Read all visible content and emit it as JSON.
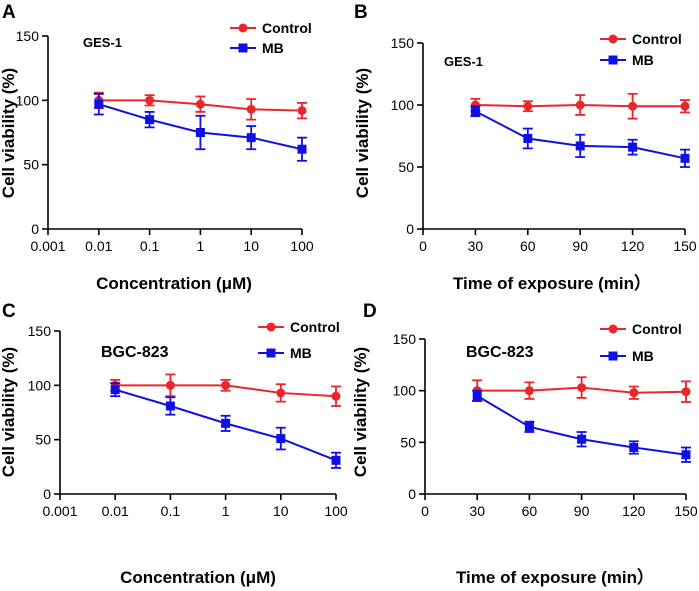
{
  "colors": {
    "control": "#e8262b",
    "mb": "#1010e6",
    "axis": "#000000"
  },
  "chart_data": [
    {
      "panel_letter": "A",
      "type": "line",
      "xscale": "log",
      "title": "GES-1",
      "xlabel": "Concentration (μM)",
      "ylabel": "Cell viability (%)",
      "x_ticks": [
        0.001,
        0.01,
        0.1,
        1,
        10,
        100
      ],
      "x_tick_labels": [
        "0.001",
        "0.01",
        "0.1",
        "1",
        "10",
        "100"
      ],
      "xlim": [
        0.001,
        100
      ],
      "ylim": [
        0,
        150
      ],
      "y_ticks": [
        0,
        50,
        100,
        150
      ],
      "y_tick_labels": [
        "0",
        "50",
        "100",
        "150"
      ],
      "x": [
        0.01,
        0.1,
        1,
        10,
        100
      ],
      "series": [
        {
          "name": "Control",
          "color_key": "control",
          "marker": "circle",
          "values": [
            100,
            100,
            97,
            93,
            92
          ],
          "errors": [
            6,
            4,
            6,
            8,
            6
          ]
        },
        {
          "name": "MB",
          "color_key": "mb",
          "marker": "square",
          "values": [
            97,
            85,
            75,
            71,
            62
          ],
          "errors": [
            8,
            6,
            13,
            9,
            9
          ]
        }
      ],
      "legend": "top-right"
    },
    {
      "panel_letter": "B",
      "type": "line",
      "xscale": "linear",
      "title": "GES-1",
      "xlabel": "Time of exposure (min）",
      "ylabel": "Cell viability (%)",
      "x_ticks": [
        0,
        30,
        60,
        90,
        120,
        150
      ],
      "x_tick_labels": [
        "0",
        "30",
        "60",
        "90",
        "120",
        "150"
      ],
      "xlim": [
        0,
        150
      ],
      "ylim": [
        0,
        150
      ],
      "y_ticks": [
        0,
        50,
        100,
        150
      ],
      "y_tick_labels": [
        "0",
        "50",
        "100",
        "150"
      ],
      "x": [
        30,
        60,
        90,
        120,
        150
      ],
      "series": [
        {
          "name": "Control",
          "color_key": "control",
          "marker": "circle",
          "values": [
            100,
            99,
            100,
            99,
            99
          ],
          "errors": [
            5,
            4,
            8,
            10,
            5
          ]
        },
        {
          "name": "MB",
          "color_key": "mb",
          "marker": "square",
          "values": [
            95,
            73,
            67,
            66,
            57
          ],
          "errors": [
            4,
            8,
            9,
            6,
            7
          ]
        }
      ],
      "legend": "top-right"
    },
    {
      "panel_letter": "C",
      "type": "line",
      "xscale": "log",
      "title": "BGC-823",
      "xlabel": "Concentration (μM)",
      "ylabel": "Cell viability (%)",
      "x_ticks": [
        0.001,
        0.01,
        0.1,
        1,
        10,
        100
      ],
      "x_tick_labels": [
        "0.001",
        "0.01",
        "0.1",
        "1",
        "10",
        "100"
      ],
      "xlim": [
        0.001,
        100
      ],
      "ylim": [
        0,
        150
      ],
      "y_ticks": [
        0,
        50,
        100,
        150
      ],
      "y_tick_labels": [
        "0",
        "50",
        "100",
        "150"
      ],
      "x": [
        0.01,
        0.1,
        1,
        10,
        100
      ],
      "series": [
        {
          "name": "Control",
          "color_key": "control",
          "marker": "circle",
          "values": [
            100,
            100,
            100,
            93,
            90
          ],
          "errors": [
            5,
            10,
            5,
            8,
            9
          ]
        },
        {
          "name": "MB",
          "color_key": "mb",
          "marker": "square",
          "values": [
            96,
            81,
            65,
            51,
            31
          ],
          "errors": [
            6,
            8,
            7,
            10,
            7
          ]
        }
      ],
      "legend": "top-right"
    },
    {
      "panel_letter": "D",
      "type": "line",
      "xscale": "linear",
      "title": "BGC-823",
      "xlabel": "Time of exposure (min）",
      "ylabel": "Cell viability (%)",
      "x_ticks": [
        0,
        30,
        60,
        90,
        120,
        150
      ],
      "x_tick_labels": [
        "0",
        "30",
        "60",
        "90",
        "120",
        "150"
      ],
      "xlim": [
        0,
        150
      ],
      "ylim": [
        0,
        150
      ],
      "y_ticks": [
        0,
        50,
        100,
        150
      ],
      "y_tick_labels": [
        "0",
        "50",
        "100",
        "150"
      ],
      "x": [
        30,
        60,
        90,
        120,
        150
      ],
      "series": [
        {
          "name": "Control",
          "color_key": "control",
          "marker": "circle",
          "values": [
            100,
            100,
            103,
            98,
            99
          ],
          "errors": [
            10,
            8,
            10,
            6,
            10
          ]
        },
        {
          "name": "MB",
          "color_key": "mb",
          "marker": "square",
          "values": [
            95,
            65,
            53,
            45,
            38
          ],
          "errors": [
            5,
            5,
            7,
            6,
            7
          ]
        }
      ],
      "legend": "top-right"
    }
  ]
}
